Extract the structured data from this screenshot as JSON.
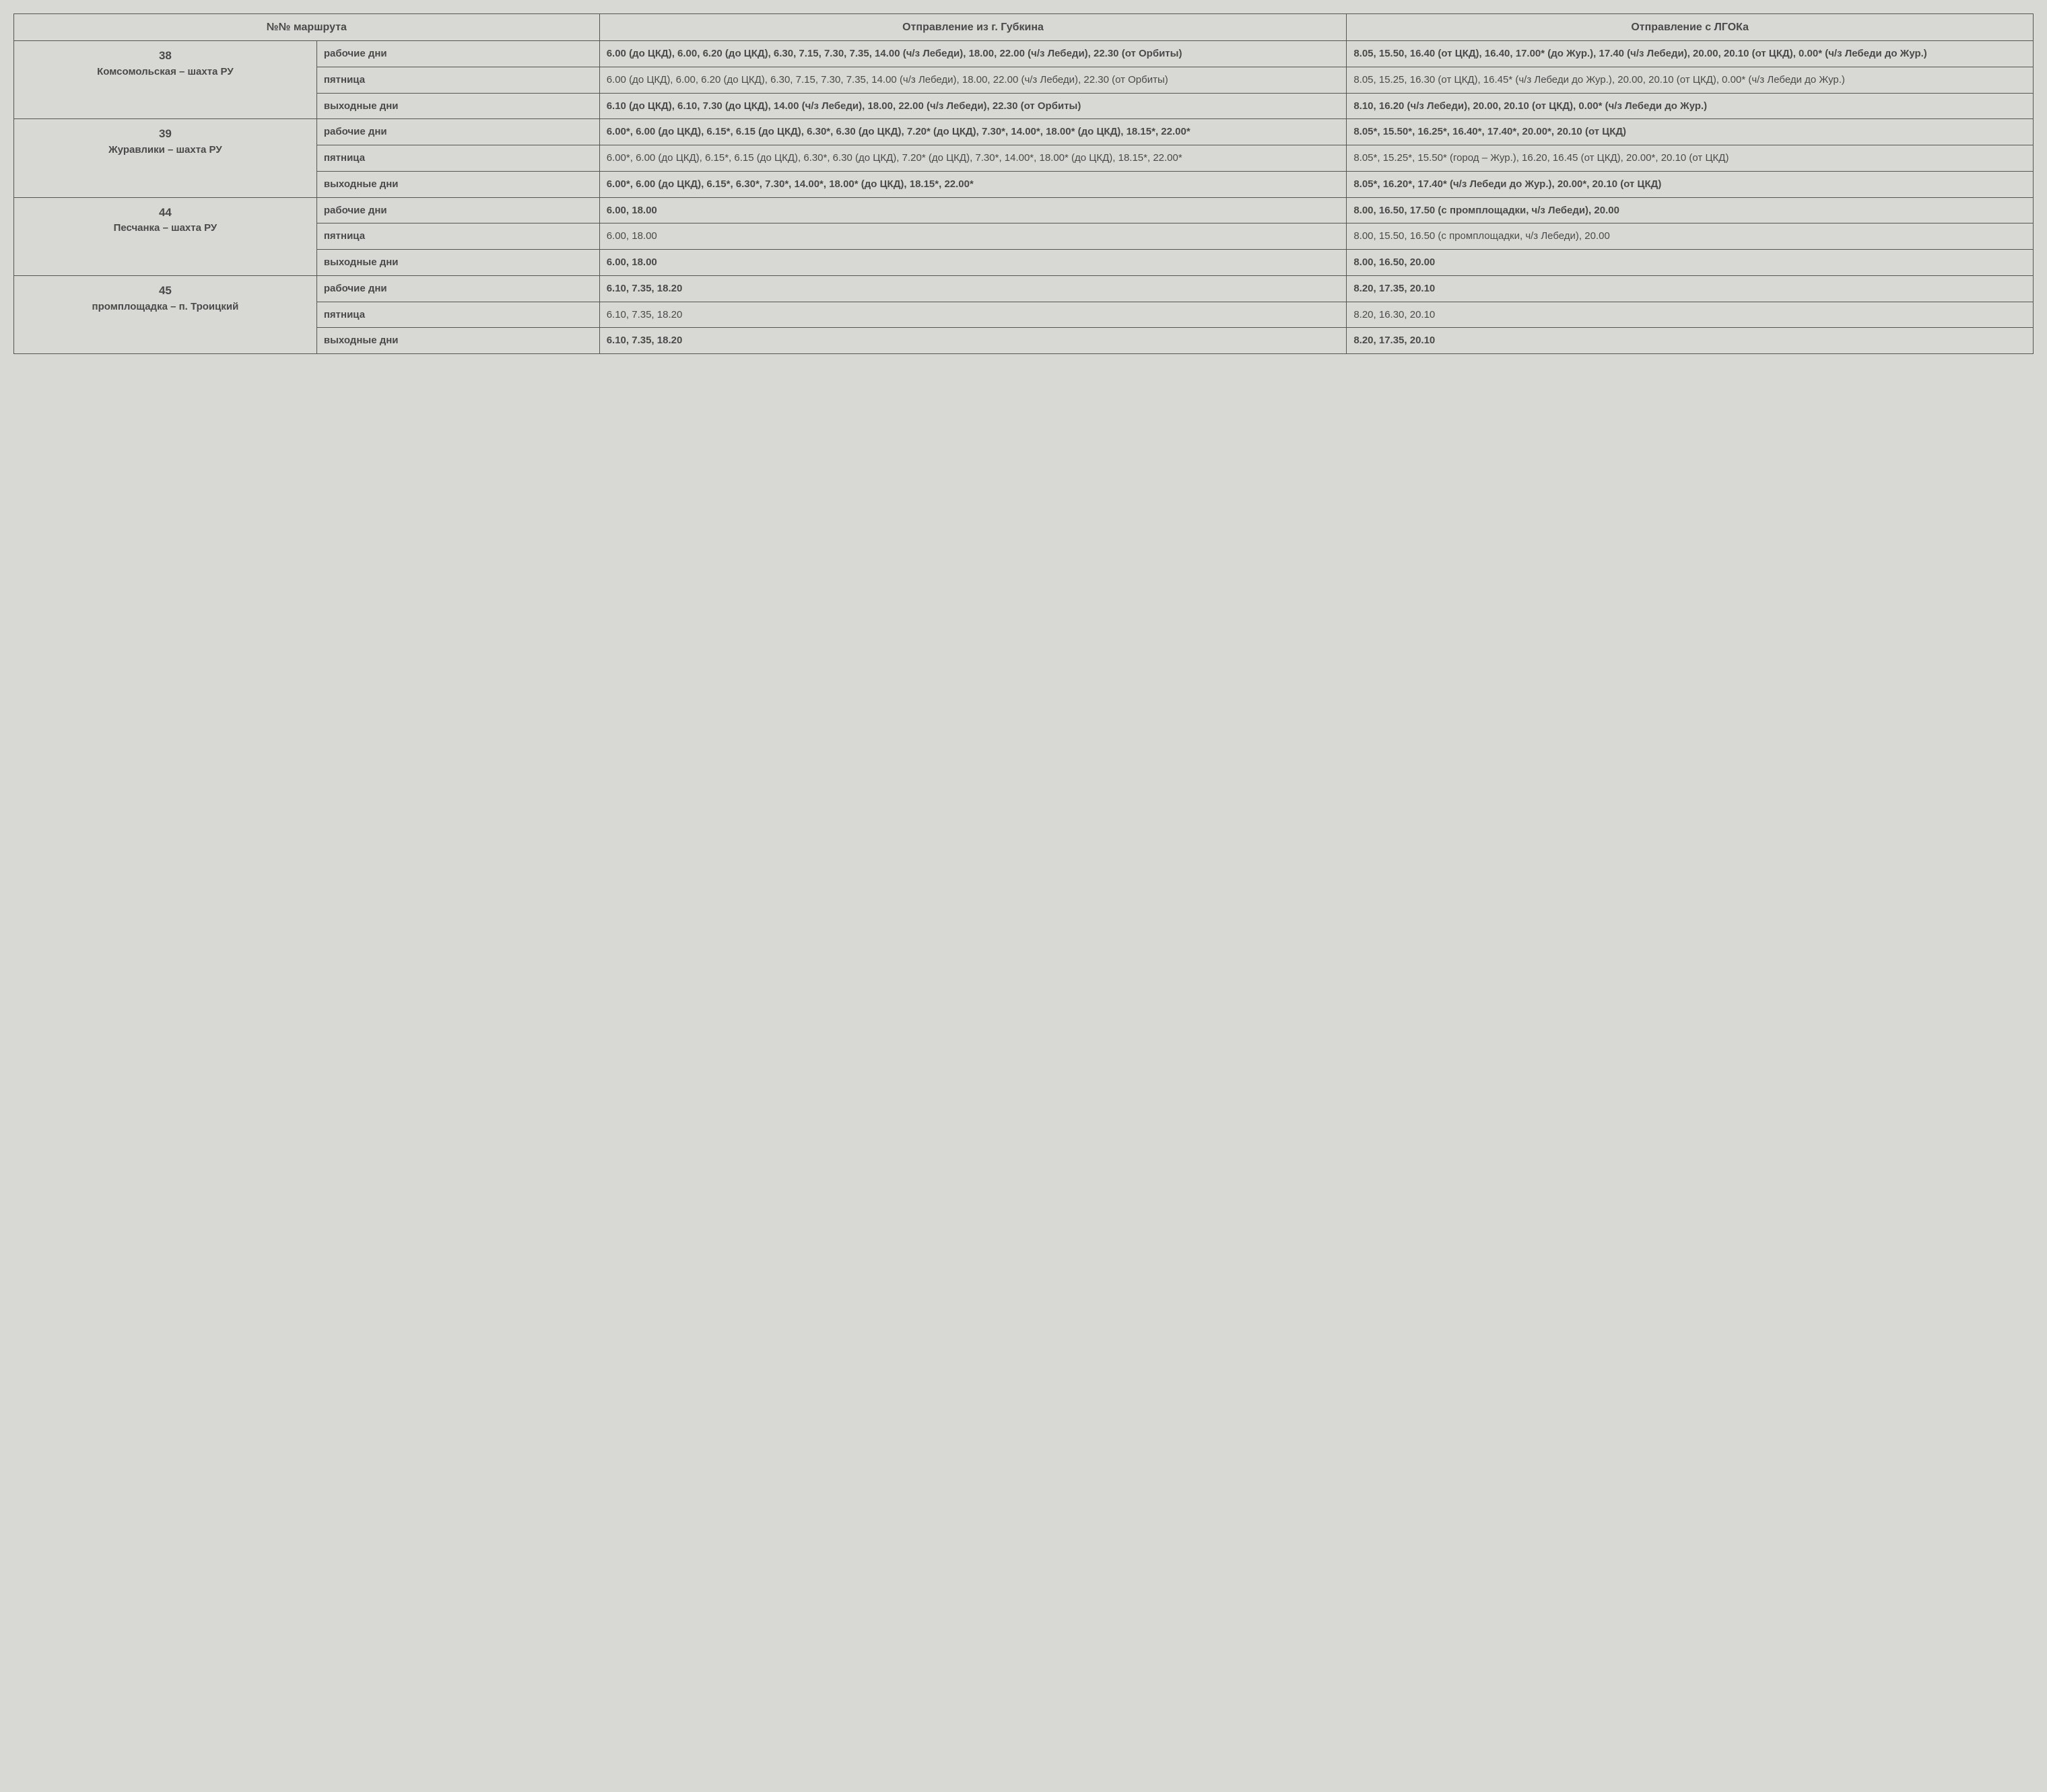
{
  "headers": {
    "col1": "№№ маршрута",
    "col3": "Отправление из г. Губкина",
    "col4": "Отправление с ЛГОКа"
  },
  "routes": [
    {
      "num": "38",
      "name": "Комсомольская – шахта РУ",
      "rows": [
        {
          "day": "рабочие дни",
          "dep1": "6.00 (до ЦКД), 6.00, 6.20 (до ЦКД), 6.30, 7.15, 7.30, 7.35, 14.00 (ч/з Лебеди), 18.00, 22.00 (ч/з Лебеди), 22.30 (от Орбиты)",
          "dep2": "8.05, 15.50, 16.40 (от ЦКД), 16.40, 17.00* (до Жур.), 17.40 (ч/з Лебеди), 20.00, 20.10 (от ЦКД), 0.00* (ч/з Лебеди до Жур.)",
          "bold": true
        },
        {
          "day": "пятница",
          "dep1": "6.00 (до ЦКД), 6.00, 6.20 (до ЦКД), 6.30, 7.15, 7.30, 7.35, 14.00 (ч/з Лебеди), 18.00, 22.00 (ч/з Лебеди), 22.30 (от Орбиты)",
          "dep2": "8.05, 15.25, 16.30 (от ЦКД), 16.45* (ч/з Лебеди до Жур.), 20.00, 20.10 (от ЦКД), 0.00* (ч/з Лебеди до Жур.)",
          "bold": false
        },
        {
          "day": "выходные дни",
          "dep1": "6.10 (до ЦКД), 6.10, 7.30 (до ЦКД), 14.00 (ч/з Лебеди), 18.00, 22.00 (ч/з Лебеди), 22.30 (от Орбиты)",
          "dep2": "8.10, 16.20 (ч/з Лебеди), 20.00, 20.10 (от ЦКД), 0.00* (ч/з Лебеди до Жур.)",
          "bold": true
        }
      ]
    },
    {
      "num": "39",
      "name": "Журавлики – шахта РУ",
      "rows": [
        {
          "day": "рабочие дни",
          "dep1": "6.00*, 6.00 (до ЦКД), 6.15*, 6.15 (до ЦКД), 6.30*, 6.30 (до ЦКД), 7.20* (до ЦКД), 7.30*, 14.00*, 18.00* (до ЦКД), 18.15*, 22.00*",
          "dep2": "8.05*, 15.50*, 16.25*, 16.40*, 17.40*, 20.00*, 20.10 (от ЦКД)",
          "bold": true
        },
        {
          "day": "пятница",
          "dep1": "6.00*, 6.00 (до ЦКД), 6.15*, 6.15 (до ЦКД), 6.30*, 6.30 (до ЦКД), 7.20* (до ЦКД), 7.30*, 14.00*, 18.00* (до ЦКД), 18.15*, 22.00*",
          "dep2": "8.05*, 15.25*, 15.50* (город – Жур.), 16.20, 16.45 (от ЦКД), 20.00*, 20.10 (от ЦКД)",
          "bold": false
        },
        {
          "day": "выходные дни",
          "dep1": "6.00*, 6.00 (до ЦКД), 6.15*, 6.30*, 7.30*, 14.00*, 18.00* (до ЦКД), 18.15*, 22.00*",
          "dep2": "8.05*, 16.20*, 17.40* (ч/з Лебеди до Жур.), 20.00*, 20.10 (от ЦКД)",
          "bold": true
        }
      ]
    },
    {
      "num": "44",
      "name": "Песчанка – шахта РУ",
      "rows": [
        {
          "day": "рабочие дни",
          "dep1": "6.00, 18.00",
          "dep2": "8.00, 16.50, 17.50 (с промплощадки, ч/з Лебеди), 20.00",
          "bold": true
        },
        {
          "day": "пятница",
          "dep1": "6.00, 18.00",
          "dep2": "8.00, 15.50, 16.50 (с промплощадки, ч/з Лебеди), 20.00",
          "bold": false
        },
        {
          "day": "выходные дни",
          "dep1": "6.00, 18.00",
          "dep2": "8.00, 16.50, 20.00",
          "bold": true
        }
      ]
    },
    {
      "num": "45",
      "name": "промплощадка – п. Троицкий",
      "rows": [
        {
          "day": "рабочие дни",
          "dep1": "6.10, 7.35, 18.20",
          "dep2": "8.20, 17.35, 20.10",
          "bold": true
        },
        {
          "day": "пятница",
          "dep1": "6.10, 7.35, 18.20",
          "dep2": "8.20, 16.30, 20.10",
          "bold": false
        },
        {
          "day": "выходные дни",
          "dep1": "6.10, 7.35, 18.20",
          "dep2": "8.20, 17.35, 20.10",
          "bold": true
        }
      ]
    }
  ],
  "style": {
    "background_color": "#d8d8d4",
    "text_color": "#4a4a4a",
    "border_color": "#555555",
    "header_fontsize": 16,
    "body_fontsize": 15,
    "col_widths_pct": [
      15,
      14,
      37,
      34
    ]
  }
}
